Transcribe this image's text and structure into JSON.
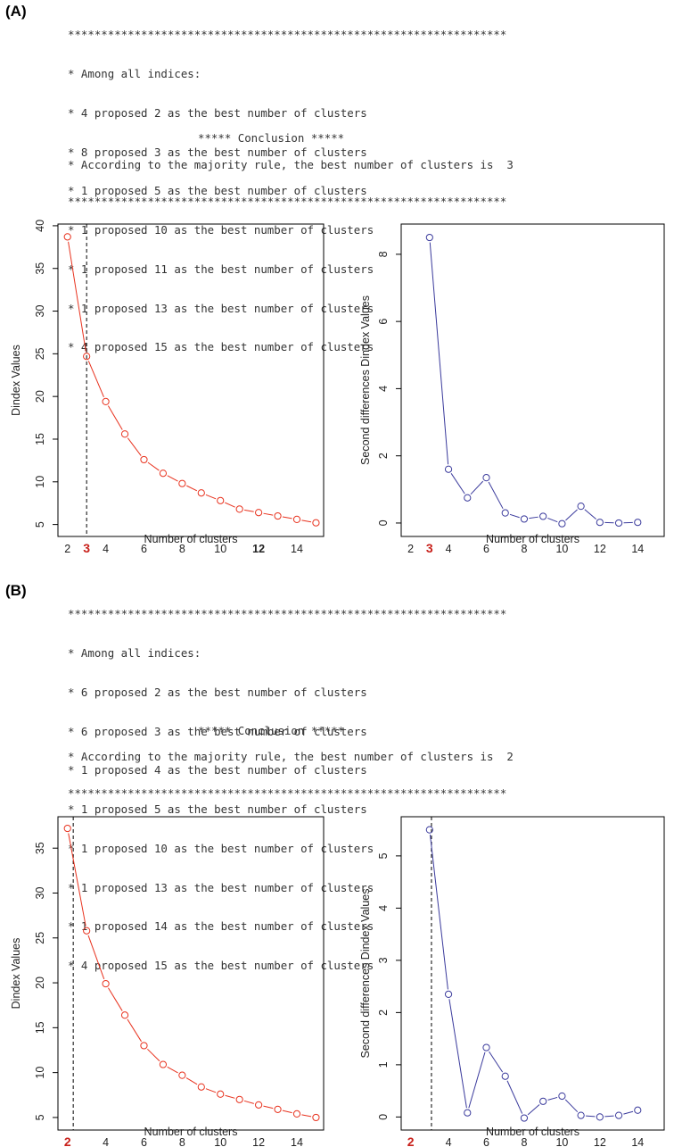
{
  "panels": [
    {
      "label": "(A)",
      "console": {
        "stars": "******************************************************************",
        "lines": [
          "* Among all indices:",
          "* 4 proposed 2 as the best number of clusters",
          "* 8 proposed 3 as the best number of clusters",
          "* 1 proposed 5 as the best number of clusters",
          "* 1 proposed 10 as the best number of clusters",
          "* 1 proposed 11 as the best number of clusters",
          "* 1 proposed 13 as the best number of clusters",
          "* 4 proposed 15 as the best number of clusters"
        ],
        "conclusion_header": "***** Conclusion *****",
        "conclusion": "* According to the majority rule, the best number of clusters is  3"
      }
    },
    {
      "label": "(B)",
      "console": {
        "stars": "******************************************************************",
        "lines": [
          "* Among all indices:",
          "* 6 proposed 2 as the best number of clusters",
          "* 6 proposed 3 as the best number of clusters",
          "* 1 proposed 4 as the best number of clusters",
          "* 1 proposed 5 as the best number of clusters",
          "* 1 proposed 10 as the best number of clusters",
          "* 1 proposed 13 as the best number of clusters",
          "* 1 proposed 14 as the best number of clusters",
          "* 4 proposed 15 as the best number of clusters"
        ],
        "conclusion_header": "***** Conclusion *****",
        "conclusion": "* According to the majority rule, the best number of clusters is  2"
      }
    }
  ],
  "colors": {
    "red": "#e8321e",
    "blue": "#3a3a9c",
    "highlight": "#c8201a"
  },
  "chart_data": [
    {
      "id": "A-left",
      "type": "line",
      "xlabel": "Number of clusters",
      "ylabel": "Dindex Values",
      "x": [
        2,
        3,
        4,
        5,
        6,
        7,
        8,
        9,
        10,
        11,
        12,
        13,
        14,
        15
      ],
      "values": [
        38.7,
        24.7,
        19.4,
        15.6,
        12.6,
        11.0,
        9.8,
        8.7,
        7.8,
        6.8,
        6.4,
        6.0,
        5.6,
        5.2
      ],
      "xlim": [
        1.5,
        15.4
      ],
      "ylim": [
        3.6,
        40.2
      ],
      "xticks": [
        "2",
        "3",
        "4",
        "6",
        "8",
        "10",
        "12",
        "14"
      ],
      "yticks": [
        "5",
        "10",
        "15",
        "20",
        "25",
        "30",
        "35",
        "40"
      ],
      "highlight_tick": "3",
      "bold_tick": "12",
      "vline": 3,
      "color": "red"
    },
    {
      "id": "A-right",
      "type": "line",
      "xlabel": "Number of clusters",
      "ylabel": "Second differences Dindex Values",
      "x": [
        3,
        4,
        5,
        6,
        7,
        8,
        9,
        10,
        11,
        12,
        13,
        14
      ],
      "values": [
        8.5,
        1.6,
        0.75,
        1.35,
        0.3,
        0.12,
        0.2,
        -0.02,
        0.5,
        0.02,
        0.0,
        0.02
      ],
      "xlim": [
        1.5,
        15.4
      ],
      "ylim": [
        -0.4,
        8.9
      ],
      "xticks": [
        "2",
        "3",
        "4",
        "6",
        "8",
        "10",
        "12",
        "14"
      ],
      "yticks": [
        "0",
        "2",
        "4",
        "6",
        "8"
      ],
      "highlight_tick": "3",
      "color": "blue"
    },
    {
      "id": "B-left",
      "type": "line",
      "xlabel": "Number of clusters",
      "ylabel": "Dindex Values",
      "x": [
        2,
        3,
        4,
        5,
        6,
        7,
        8,
        9,
        10,
        11,
        12,
        13,
        14,
        15
      ],
      "values": [
        37.2,
        25.8,
        19.9,
        16.4,
        13.0,
        10.9,
        9.7,
        8.4,
        7.6,
        7.0,
        6.4,
        5.9,
        5.4,
        5.0
      ],
      "xlim": [
        1.5,
        15.4
      ],
      "ylim": [
        3.6,
        38.5
      ],
      "xticks": [
        "2",
        "4",
        "6",
        "8",
        "10",
        "12",
        "14"
      ],
      "yticks": [
        "5",
        "10",
        "15",
        "20",
        "25",
        "30",
        "35"
      ],
      "highlight_tick": "2",
      "vline": 2.3,
      "color": "red"
    },
    {
      "id": "B-right",
      "type": "line",
      "xlabel": "Number of clusters",
      "ylabel": "Second differences Dindex Values",
      "x": [
        3,
        4,
        5,
        6,
        7,
        8,
        9,
        10,
        11,
        12,
        13,
        14
      ],
      "values": [
        5.5,
        2.35,
        0.08,
        1.33,
        0.78,
        -0.02,
        0.3,
        0.4,
        0.03,
        0.0,
        0.03,
        0.13
      ],
      "xlim": [
        1.5,
        15.4
      ],
      "ylim": [
        -0.25,
        5.75
      ],
      "xticks": [
        "2",
        "4",
        "6",
        "8",
        "10",
        "12",
        "14"
      ],
      "yticks": [
        "0",
        "1",
        "2",
        "3",
        "4",
        "5"
      ],
      "highlight_tick": "2",
      "vline": 3.1,
      "color": "blue"
    }
  ]
}
